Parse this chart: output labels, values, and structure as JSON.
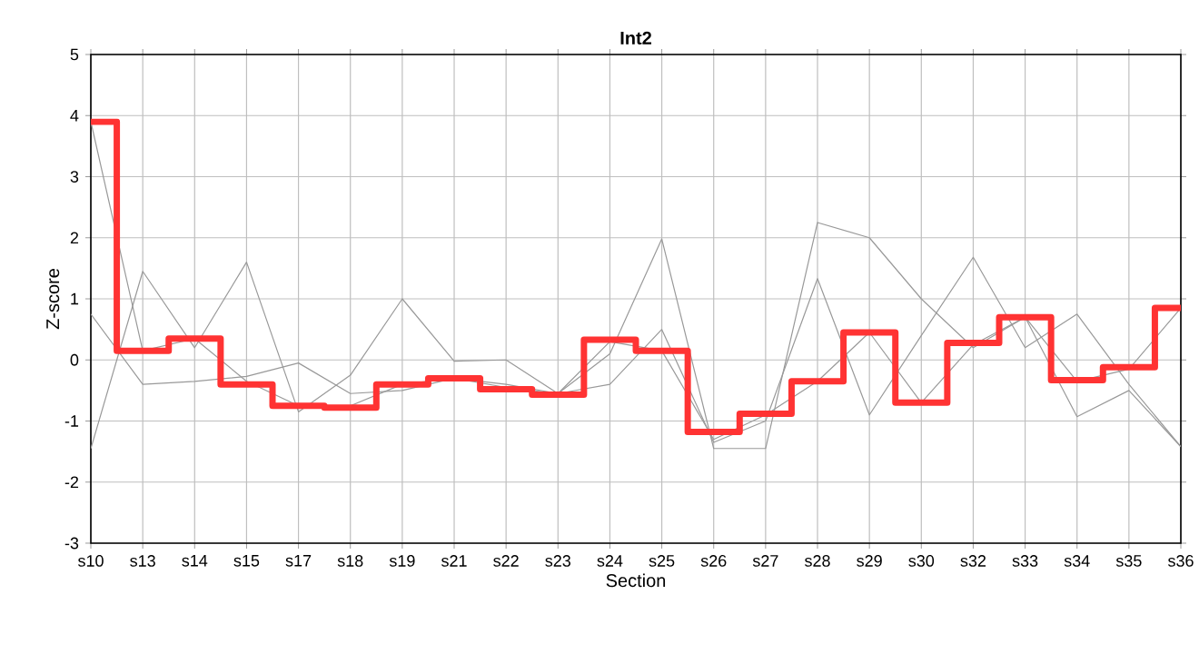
{
  "chart_data": {
    "type": "line",
    "title": "Int2",
    "xlabel": "Section",
    "ylabel": "Z-score",
    "categories": [
      "s10",
      "s13",
      "s14",
      "s15",
      "s17",
      "s18",
      "s19",
      "s21",
      "s22",
      "s23",
      "s24",
      "s25",
      "s26",
      "s27",
      "s28",
      "s29",
      "s30",
      "s32",
      "s33",
      "s34",
      "s35",
      "s36"
    ],
    "series": [
      {
        "color": "#999999",
        "values": [
          3.9,
          0.15,
          0.35,
          -0.35,
          -0.75,
          -0.75,
          -0.4,
          -0.3,
          -0.45,
          -0.55,
          0.3,
          0.15,
          -1.3,
          -0.9,
          -0.35,
          0.45,
          -0.7,
          0.25,
          0.7,
          -0.35,
          -0.15,
          0.85
        ]
      },
      {
        "color": "#999999",
        "values": [
          -1.45,
          1.45,
          0.2,
          1.6,
          -0.85,
          -0.25,
          1.0,
          -0.02,
          0.0,
          -0.55,
          0.1,
          1.98,
          -1.45,
          -1.45,
          2.25,
          2.0,
          1.0,
          0.2,
          0.7,
          -0.93,
          -0.5,
          -1.42
        ]
      },
      {
        "color": "#999999",
        "values": [
          0.75,
          -0.4,
          -0.35,
          -0.27,
          -0.05,
          -0.55,
          -0.5,
          -0.3,
          -0.4,
          -0.55,
          -0.4,
          0.5,
          -1.35,
          -1.0,
          1.33,
          -0.9,
          0.4,
          1.68,
          0.2,
          0.75,
          -0.4,
          -1.42
        ]
      },
      {
        "type": "step",
        "color": "#ff3333",
        "values": [
          3.9,
          0.15,
          0.35,
          -0.4,
          -0.75,
          -0.78,
          -0.4,
          -0.3,
          -0.48,
          -0.57,
          0.33,
          0.15,
          -1.18,
          -0.88,
          -0.35,
          0.45,
          -0.7,
          0.28,
          0.7,
          -0.33,
          -0.12,
          0.85
        ]
      }
    ],
    "ylim": [
      -3,
      5
    ],
    "yticks": [
      -3,
      -2,
      -1,
      0,
      1,
      2,
      3,
      4,
      5
    ],
    "grid": true,
    "marker": "none"
  }
}
